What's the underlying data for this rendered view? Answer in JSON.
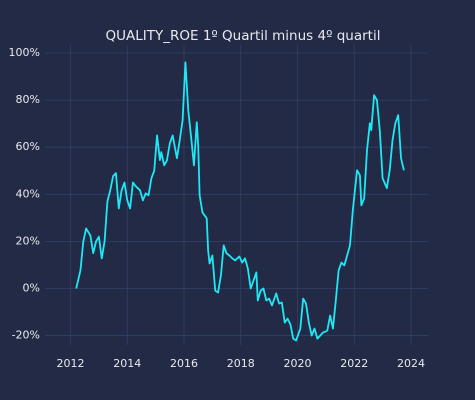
{
  "chart_data": {
    "type": "line",
    "title": "QUALITY_ROE 1º Quartil minus 4º quartil",
    "x": [
      2012.2,
      2012.35,
      2012.45,
      2012.55,
      2012.7,
      2012.8,
      2012.9,
      2013.0,
      2013.1,
      2013.2,
      2013.3,
      2013.4,
      2013.5,
      2013.6,
      2013.7,
      2013.8,
      2013.9,
      2014.0,
      2014.1,
      2014.2,
      2014.3,
      2014.45,
      2014.55,
      2014.65,
      2014.75,
      2014.85,
      2014.95,
      2015.05,
      2015.15,
      2015.2,
      2015.3,
      2015.4,
      2015.5,
      2015.6,
      2015.75,
      2015.85,
      2015.95,
      2016.05,
      2016.15,
      2016.25,
      2016.35,
      2016.45,
      2016.5,
      2016.55,
      2016.65,
      2016.8,
      2016.85,
      2016.9,
      2017.0,
      2017.1,
      2017.2,
      2017.3,
      2017.4,
      2017.5,
      2017.6,
      2017.7,
      2017.8,
      2017.95,
      2018.05,
      2018.15,
      2018.25,
      2018.35,
      2018.45,
      2018.55,
      2018.6,
      2018.7,
      2018.8,
      2018.9,
      2019.0,
      2019.1,
      2019.25,
      2019.35,
      2019.45,
      2019.55,
      2019.65,
      2019.75,
      2019.85,
      2019.95,
      2020.1,
      2020.2,
      2020.3,
      2020.4,
      2020.5,
      2020.6,
      2020.7,
      2020.8,
      2020.9,
      2021.05,
      2021.15,
      2021.25,
      2021.35,
      2021.45,
      2021.55,
      2021.65,
      2021.75,
      2021.85,
      2021.95,
      2022.1,
      2022.2,
      2022.25,
      2022.35,
      2022.45,
      2022.55,
      2022.6,
      2022.7,
      2022.8,
      2022.9,
      2023.0,
      2023.15,
      2023.25,
      2023.35,
      2023.45,
      2023.55,
      2023.65,
      2023.75
    ],
    "series": [
      {
        "name": "QUALITY_ROE",
        "color": "#1ee8f5",
        "values": [
          0,
          7.7,
          20,
          25.5,
          22.5,
          15,
          20,
          22,
          12.8,
          20,
          37,
          41.7,
          47.7,
          49,
          34,
          41.7,
          45,
          37.4,
          34,
          45,
          43.4,
          41.7,
          37.4,
          40.4,
          39.6,
          46.8,
          50,
          65,
          54.5,
          57.9,
          52.3,
          54.5,
          61.7,
          65,
          55.3,
          63,
          71.5,
          96,
          75.7,
          64.3,
          52.3,
          70.6,
          60.8,
          39.6,
          32.3,
          29.8,
          16.2,
          10.6,
          14,
          -0.9,
          -1.7,
          5.5,
          18.3,
          14.9,
          14,
          12.8,
          11.9,
          13.6,
          11,
          12.8,
          8.5,
          0,
          3.4,
          6.8,
          -5.1,
          -0.9,
          0,
          -5.1,
          -4.3,
          -7.2,
          -2.1,
          -6.4,
          -6,
          -14.5,
          -12.8,
          -15.3,
          -21.3,
          -22.1,
          -17,
          -4.3,
          -6.4,
          -14.5,
          -20,
          -17,
          -21.3,
          -20,
          -18.7,
          -17.9,
          -11.5,
          -17,
          -5.1,
          7.7,
          11,
          9.8,
          14,
          18.3,
          33.2,
          50.2,
          48.1,
          35.3,
          38.3,
          58.7,
          70.2,
          67.2,
          82.1,
          80,
          67.2,
          46.8,
          42.6,
          50.2,
          63,
          70.2,
          73.6,
          55.3,
          50.2
        ]
      }
    ],
    "xlim": [
      2011.1,
      2024.6
    ],
    "xticks": [
      2012,
      2014,
      2016,
      2018,
      2020,
      2022,
      2024
    ],
    "ylim": [
      -24,
      103.4
    ],
    "yticks": [
      {
        "value": -20,
        "label": "-20%"
      },
      {
        "value": 0,
        "label": "0%"
      },
      {
        "value": 20,
        "label": "20%"
      },
      {
        "value": 40,
        "label": "40%"
      },
      {
        "value": 60,
        "label": "60%"
      },
      {
        "value": 80,
        "label": "80%"
      },
      {
        "value": 100,
        "label": "100%"
      }
    ],
    "grid": true
  }
}
